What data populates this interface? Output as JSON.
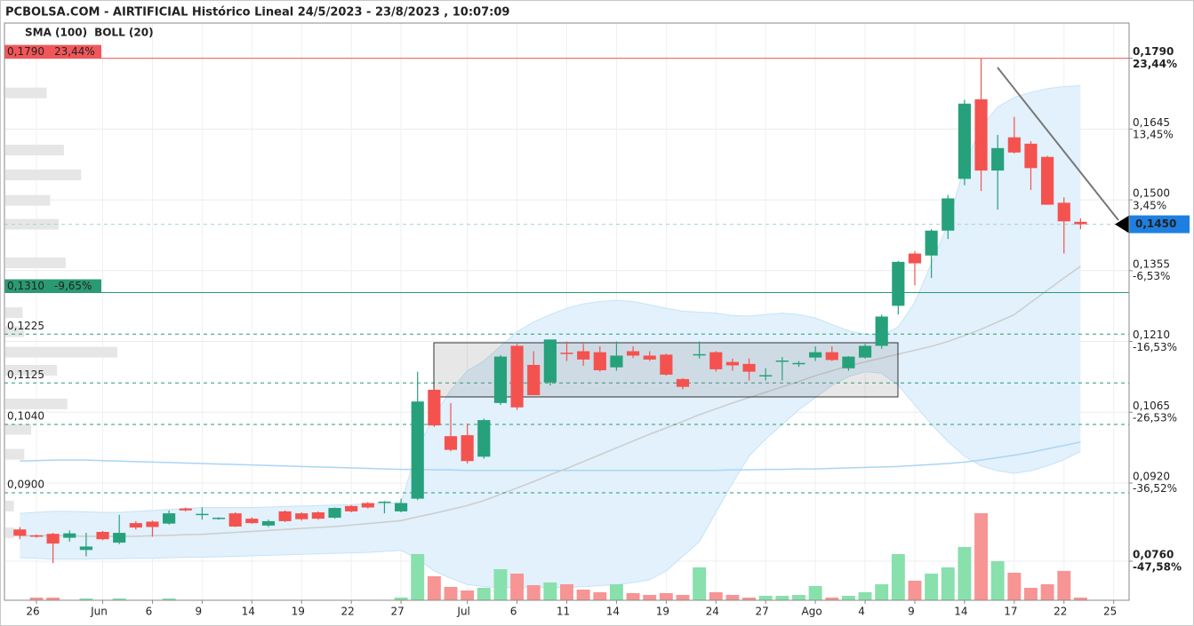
{
  "chart_data": {
    "type": "candlestick",
    "title": "PCBOLSA.COM - AIRTIFICIAL Histórico Lineal 24/5/2023 - 23/8/2023 , 10:07:09",
    "categories": [
      null,
      "26",
      null,
      null,
      null,
      "Jun",
      null,
      null,
      "6",
      null,
      null,
      "9",
      null,
      null,
      "14",
      null,
      null,
      "19",
      null,
      null,
      "22",
      null,
      null,
      "27",
      null,
      null,
      null,
      "Jul",
      null,
      null,
      "6",
      null,
      null,
      "11",
      null,
      null,
      "14",
      null,
      null,
      "19",
      null,
      null,
      "24",
      null,
      null,
      "27",
      null,
      null,
      "Ago",
      null,
      null,
      "4",
      null,
      null,
      "9",
      null,
      null,
      "14",
      null,
      null,
      "17",
      null,
      null,
      "22",
      null,
      null,
      "25"
    ],
    "open": [
      0.0825,
      0.0813,
      0.0816,
      0.0808,
      0.0783,
      0.082,
      0.0798,
      0.0838,
      0.0841,
      0.0837,
      0.0868,
      0.0855,
      0.0848,
      0.0858,
      0.0847,
      0.0833,
      0.0862,
      0.0858,
      0.086,
      0.0849,
      0.0873,
      0.0879,
      0.0881,
      0.0862,
      0.0888,
      0.1111,
      0.1016,
      0.1018,
      0.0974,
      0.1084,
      0.1201,
      0.1162,
      0.1126,
      0.1187,
      0.119,
      0.1188,
      0.1157,
      0.119,
      0.1181,
      0.1183,
      0.1133,
      0.1183,
      0.1188,
      0.1168,
      0.1164,
      0.1139,
      0.117,
      0.1165,
      0.1177,
      0.1188,
      0.1155,
      0.1177,
      0.1201,
      0.1283,
      0.139,
      0.1386,
      0.1437,
      0.1543,
      0.1706,
      0.156,
      0.1628,
      0.1615,
      0.1588,
      0.1494,
      0.1455,
      null,
      null
    ],
    "high": [
      0.083,
      0.0815,
      0.0818,
      0.0823,
      0.0818,
      0.0822,
      0.0855,
      0.0842,
      0.0843,
      0.0864,
      0.087,
      0.087,
      0.085,
      0.086,
      0.085,
      0.0845,
      0.0864,
      0.086,
      0.0862,
      0.087,
      0.0875,
      0.0881,
      0.0883,
      0.0888,
      0.1148,
      0.1115,
      0.1084,
      0.1042,
      0.1052,
      0.1182,
      0.1205,
      0.119,
      0.1214,
      0.121,
      0.1205,
      0.12,
      0.121,
      0.12,
      0.119,
      0.1185,
      0.1135,
      0.121,
      0.119,
      0.1175,
      0.1175,
      0.1155,
      0.1178,
      0.117,
      0.12,
      0.12,
      0.118,
      0.1205,
      0.1265,
      0.1375,
      0.1395,
      0.144,
      0.151,
      0.1705,
      0.179,
      0.1633,
      0.167,
      0.162,
      0.159,
      0.1505,
      0.1462,
      null,
      null
    ],
    "low": [
      0.0805,
      0.0808,
      0.0756,
      0.08,
      0.077,
      0.0803,
      0.0795,
      0.0825,
      0.081,
      0.0835,
      0.0862,
      0.0845,
      0.0845,
      0.083,
      0.0836,
      0.083,
      0.084,
      0.0843,
      0.0845,
      0.0847,
      0.086,
      0.0868,
      0.0858,
      0.086,
      0.0885,
      0.1035,
      0.0985,
      0.096,
      0.097,
      0.108,
      0.107,
      0.11,
      0.112,
      0.117,
      0.116,
      0.1148,
      0.115,
      0.1176,
      0.117,
      0.114,
      0.1112,
      0.1175,
      0.1148,
      0.115,
      0.113,
      0.113,
      0.113,
      0.1158,
      0.117,
      0.117,
      0.115,
      0.1175,
      0.1195,
      0.1265,
      0.1325,
      0.134,
      0.142,
      0.153,
      0.1518,
      0.148,
      0.1595,
      0.152,
      0.149,
      0.139,
      0.144,
      null,
      null
    ],
    "close": [
      0.0812,
      0.081,
      0.0796,
      0.0817,
      0.079,
      0.0805,
      0.0818,
      0.0829,
      0.083,
      0.0858,
      0.0864,
      0.0857,
      0.0849,
      0.0831,
      0.0838,
      0.0842,
      0.0842,
      0.0846,
      0.0847,
      0.0869,
      0.0862,
      0.087,
      0.0882,
      0.0879,
      0.1087,
      0.1038,
      0.0988,
      0.0965,
      0.1049,
      0.1179,
      0.1075,
      0.11,
      0.1214,
      0.1186,
      0.1173,
      0.1151,
      0.1181,
      0.1181,
      0.1173,
      0.1142,
      0.1117,
      0.1184,
      0.1153,
      0.1161,
      0.1148,
      0.1141,
      0.1171,
      0.1166,
      0.1188,
      0.1172,
      0.1179,
      0.1201,
      0.1261,
      0.1373,
      0.137,
      0.1437,
      0.1503,
      0.1697,
      0.156,
      0.1606,
      0.1597,
      0.1565,
      0.149,
      0.1456,
      0.145,
      null,
      null
    ],
    "volume": [
      0,
      3,
      3,
      0,
      2,
      0,
      2,
      0,
      0,
      2,
      0,
      0,
      0,
      0,
      0,
      0,
      0,
      0,
      0,
      0,
      0,
      0,
      0,
      3,
      52,
      27,
      15,
      11,
      14,
      35,
      30,
      17,
      20,
      18,
      12,
      9,
      18,
      8,
      6,
      8,
      6,
      37,
      9,
      6,
      3,
      5,
      5,
      6,
      16,
      3,
      5,
      9,
      18,
      52,
      22,
      30,
      37,
      60,
      98,
      44,
      31,
      14,
      18,
      33,
      3,
      null,
      null
    ],
    "up_color": "#26a17b",
    "down_color": "#f4524f",
    "volume_up_color": "#88e0ac",
    "volume_down_color": "#f79494",
    "series": [
      {
        "name": "SMA (100)",
        "color": "#a9d5f5",
        "values": [
          0.0965,
          0.0966,
          0.0967,
          0.0967,
          0.0967,
          0.0966,
          0.0965,
          0.0964,
          0.0963,
          0.0962,
          0.0961,
          0.096,
          0.0959,
          0.0958,
          0.0957,
          0.0956,
          0.0955,
          0.0954,
          0.0953,
          0.0952,
          0.0951,
          0.095,
          0.0949,
          0.0948,
          0.0948,
          0.0947,
          0.0947,
          0.0946,
          0.0946,
          0.0946,
          0.0946,
          0.0946,
          0.0946,
          0.0946,
          0.0946,
          0.0946,
          0.0946,
          0.0946,
          0.0946,
          0.0946,
          0.0946,
          0.0946,
          0.0946,
          0.0947,
          0.0947,
          0.0948,
          0.0948,
          0.0949,
          0.0949,
          0.095,
          0.0951,
          0.0952,
          0.0953,
          0.0954,
          0.0956,
          0.0958,
          0.096,
          0.0963,
          0.0967,
          0.0972,
          0.0977,
          0.0983,
          0.099,
          0.0997,
          0.1004,
          null,
          null
        ]
      },
      {
        "name": "BOLL (20)",
        "color": "#cccccc",
        "band_color": "#e2f1fc",
        "band_edge_color": "#c6e3f8",
        "values": [
          0.0812,
          0.0812,
          0.0812,
          0.0812,
          0.0811,
          0.0811,
          0.0811,
          0.0811,
          0.0812,
          0.0813,
          0.0814,
          0.0815,
          0.0817,
          0.0819,
          0.0821,
          0.0823,
          0.0825,
          0.0827,
          0.0829,
          0.0831,
          0.0834,
          0.0837,
          0.084,
          0.0843,
          0.0851,
          0.0858,
          0.0866,
          0.0874,
          0.0884,
          0.0897,
          0.091,
          0.0923,
          0.0937,
          0.095,
          0.0964,
          0.0978,
          0.0992,
          0.1006,
          0.102,
          0.1033,
          0.1046,
          0.106,
          0.1072,
          0.1084,
          0.1095,
          0.1106,
          0.1117,
          0.1128,
          0.114,
          0.115,
          0.116,
          0.1168,
          0.1176,
          0.1184,
          0.1192,
          0.12,
          0.121,
          0.1222,
          0.1235,
          0.125,
          0.1265,
          0.129,
          0.1315,
          0.134,
          0.1364,
          null,
          null
        ],
        "upper": [
          0.0858,
          0.086,
          0.0862,
          0.0862,
          0.0861,
          0.086,
          0.086,
          0.0862,
          0.0864,
          0.0866,
          0.0868,
          0.087,
          0.087,
          0.087,
          0.087,
          0.0871,
          0.0872,
          0.0873,
          0.0874,
          0.0875,
          0.0876,
          0.0877,
          0.0878,
          0.088,
          0.099,
          0.106,
          0.111,
          0.115,
          0.117,
          0.12,
          0.123,
          0.125,
          0.1265,
          0.1278,
          0.1287,
          0.1292,
          0.1294,
          0.1292,
          0.1285,
          0.1278,
          0.1272,
          0.127,
          0.1268,
          0.1263,
          0.1262,
          0.1265,
          0.1268,
          0.1265,
          0.1258,
          0.1245,
          0.1232,
          0.1225,
          0.1222,
          0.124,
          0.129,
          0.137,
          0.145,
          0.157,
          0.165,
          0.169,
          0.171,
          0.172,
          0.1728,
          0.1732,
          0.1734,
          null,
          null
        ],
        "lower": [
          0.0767,
          0.0766,
          0.0764,
          0.0764,
          0.0764,
          0.0765,
          0.0765,
          0.0766,
          0.0766,
          0.0767,
          0.0768,
          0.0768,
          0.0769,
          0.077,
          0.0771,
          0.0772,
          0.0773,
          0.0774,
          0.0775,
          0.0776,
          0.0777,
          0.0778,
          0.078,
          0.0782,
          0.0765,
          0.074,
          0.0725,
          0.0712,
          0.0708,
          0.0706,
          0.0706,
          0.0706,
          0.0706,
          0.0706,
          0.0708,
          0.071,
          0.0712,
          0.0716,
          0.0722,
          0.074,
          0.077,
          0.08,
          0.086,
          0.092,
          0.0975,
          0.101,
          0.104,
          0.107,
          0.1095,
          0.112,
          0.1138,
          0.1148,
          0.1145,
          0.112,
          0.108,
          0.104,
          0.1005,
          0.0975,
          0.0955,
          0.0945,
          0.094,
          0.0945,
          0.0955,
          0.0968,
          0.0985,
          null,
          null
        ]
      }
    ],
    "ylim": [
      0.068,
      0.1862
    ],
    "yticks": [
      {
        "value": 0.179,
        "label": "0,1790"
      },
      {
        "value": 0.1645,
        "label": "0,1645"
      },
      {
        "value": 0.15,
        "label": "0,1500"
      },
      {
        "value": 0.1355,
        "label": "0,1355"
      },
      {
        "value": 0.121,
        "label": "0,1210"
      },
      {
        "value": 0.1065,
        "label": "0,1065"
      },
      {
        "value": 0.092,
        "label": "0,0920"
      },
      {
        "value": 0.076,
        "label": "0,0760"
      }
    ],
    "y2lim": [
      -53.11,
      28.4
    ],
    "y2ticks": [
      {
        "value": 23.44,
        "label": "23,44%"
      },
      {
        "value": 13.45,
        "label": "13,45%"
      },
      {
        "value": 3.45,
        "label": "3,45%"
      },
      {
        "value": -6.53,
        "label": "-6,53%"
      },
      {
        "value": -16.53,
        "label": "-16,53%"
      },
      {
        "value": -26.53,
        "label": "-26,53%"
      },
      {
        "value": -36.52,
        "label": "-36,52%"
      },
      {
        "value": -47.58,
        "label": "-47,58%"
      }
    ],
    "grid": true,
    "levels": [
      {
        "value": 0.179,
        "label": "0,1790",
        "pct": {
          "value": 23.44,
          "label": "23,44%"
        },
        "style": "solid",
        "tag": "left-box",
        "color": "#f0575a"
      },
      {
        "value": 0.131,
        "label": "0,1310",
        "pct": {
          "value": -9.65,
          "label": "-9,65%"
        },
        "style": "solid",
        "tag": "left-box",
        "color": "#2a9a72"
      },
      {
        "value": 0.145,
        "label": "0,1450",
        "style": "dashed",
        "tag": "right-box",
        "color": "#a6d3cc",
        "tag_color": "#1e7fe0"
      },
      {
        "value": 0.1225,
        "label": "0,1225",
        "style": "dashed",
        "tag": "left-text",
        "color": "#2a9a72"
      },
      {
        "value": 0.1125,
        "label": "0,1125",
        "style": "dashed",
        "tag": "left-text",
        "color": "#2a9a72"
      },
      {
        "value": 0.104,
        "label": "0,1040",
        "style": "dashed",
        "tag": "left-text",
        "color": "#2a9a72"
      },
      {
        "value": 0.09,
        "label": "0,0900",
        "style": "dashed",
        "tag": "left-text",
        "color": "#2a9a72"
      }
    ],
    "volume_profile": [
      {
        "price": 0.1719,
        "size": 48
      },
      {
        "price": 0.1602,
        "size": 68
      },
      {
        "price": 0.1551,
        "size": 88
      },
      {
        "price": 0.1499,
        "size": 52
      },
      {
        "price": 0.145,
        "size": 62
      },
      {
        "price": 0.1371,
        "size": 70
      },
      {
        "price": 0.1269,
        "size": 20
      },
      {
        "price": 0.123,
        "size": 22
      },
      {
        "price": 0.1188,
        "size": 130
      },
      {
        "price": 0.1151,
        "size": 60
      },
      {
        "price": 0.1082,
        "size": 72
      },
      {
        "price": 0.103,
        "size": 30
      },
      {
        "price": 0.0979,
        "size": 22
      },
      {
        "price": 0.0873,
        "size": 10
      },
      {
        "price": 0.0818,
        "size": 10
      }
    ],
    "volume_profile_color": "#e6e6e6"
  }
}
